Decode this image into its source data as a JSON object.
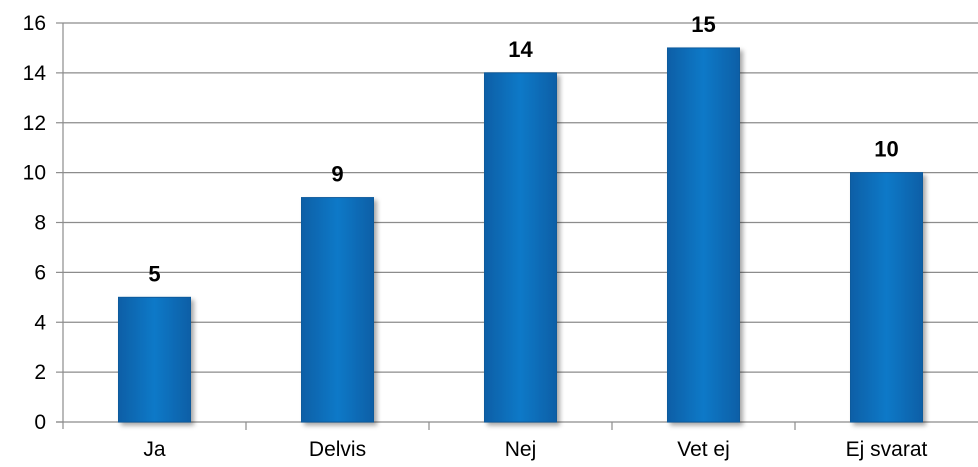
{
  "chart_data": {
    "type": "bar",
    "categories": [
      "Ja",
      "Delvis",
      "Nej",
      "Vet ej",
      "Ej svarat"
    ],
    "values": [
      5,
      9,
      14,
      15,
      10
    ],
    "data_labels": [
      "5",
      "9",
      "14",
      "15",
      "10"
    ],
    "ylim": [
      0,
      16
    ],
    "yticks": [
      0,
      2,
      4,
      6,
      8,
      10,
      12,
      14,
      16
    ],
    "grid": true,
    "legend": "none",
    "bar_color": "#0f73c1"
  }
}
